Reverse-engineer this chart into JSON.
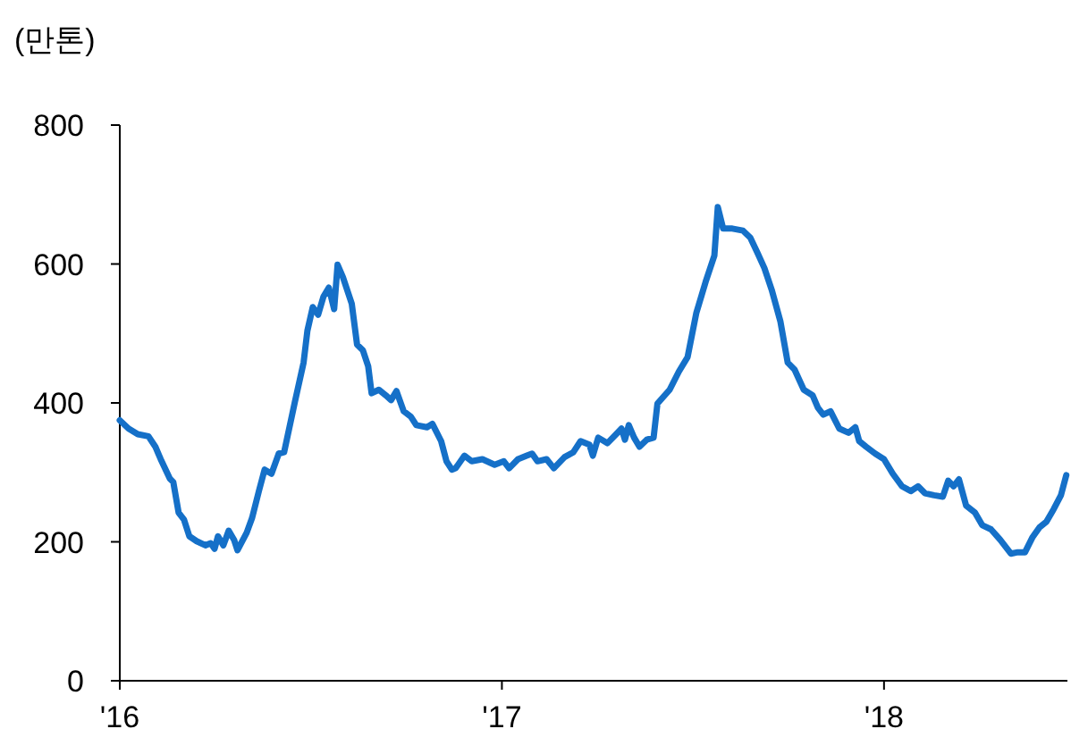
{
  "chart_data": {
    "type": "line",
    "ylabel": "(만톤)",
    "x": [
      2016.0,
      2016.023,
      2016.047,
      2016.075,
      2016.093,
      2016.107,
      2016.131,
      2016.14,
      2016.154,
      2016.168,
      2016.182,
      2016.201,
      2016.224,
      2016.238,
      2016.248,
      2016.257,
      2016.271,
      2016.285,
      2016.299,
      2016.308,
      2016.332,
      2016.346,
      2016.364,
      2016.379,
      2016.397,
      2016.416,
      2016.43,
      2016.458,
      2016.481,
      2016.491,
      2016.505,
      2016.519,
      2016.533,
      2016.547,
      2016.561,
      2016.57,
      2016.584,
      2016.607,
      2016.621,
      2016.636,
      2016.65,
      2016.659,
      2016.678,
      2016.696,
      2016.71,
      2016.724,
      2016.743,
      2016.762,
      2016.776,
      2016.804,
      2016.818,
      2016.841,
      2016.855,
      2016.869,
      2016.879,
      2016.902,
      2016.921,
      2016.949,
      2016.981,
      2017.005,
      2017.019,
      2017.042,
      2017.065,
      2017.079,
      2017.093,
      2017.117,
      2017.136,
      2017.164,
      2017.187,
      2017.206,
      2017.229,
      2017.238,
      2017.252,
      2017.276,
      2017.299,
      2017.313,
      2017.322,
      2017.332,
      2017.346,
      2017.36,
      2017.379,
      2017.397,
      2017.407,
      2017.439,
      2017.463,
      2017.486,
      2017.509,
      2017.533,
      2017.556,
      2017.565,
      2017.579,
      2017.603,
      2017.631,
      2017.65,
      2017.668,
      2017.687,
      2017.706,
      2017.729,
      2017.748,
      2017.766,
      2017.79,
      2017.813,
      2017.827,
      2017.841,
      2017.86,
      2017.883,
      2017.907,
      2017.925,
      2017.935,
      2017.953,
      2017.977,
      2018.0,
      2018.023,
      2018.047,
      2018.07,
      2018.089,
      2018.107,
      2018.131,
      2018.154,
      2018.168,
      2018.182,
      2018.196,
      2018.215,
      2018.238,
      2018.257,
      2018.28,
      2018.304,
      2018.332,
      2018.35,
      2018.369,
      2018.388,
      2018.407,
      2018.425,
      2018.444,
      2018.463,
      2018.477
    ],
    "series": [
      {
        "color": "#1570c8",
        "values": [
          375,
          363,
          355,
          352,
          337,
          319,
          291,
          286,
          242,
          232,
          208,
          201,
          195,
          198,
          190,
          208,
          195,
          216,
          203,
          188,
          213,
          234,
          273,
          304,
          298,
          327,
          329,
          401,
          458,
          504,
          538,
          527,
          553,
          566,
          535,
          599,
          581,
          543,
          484,
          476,
          453,
          414,
          419,
          411,
          404,
          417,
          388,
          380,
          368,
          365,
          370,
          345,
          316,
          304,
          306,
          324,
          316,
          319,
          311,
          316,
          306,
          319,
          324,
          327,
          316,
          319,
          306,
          322,
          329,
          345,
          340,
          324,
          350,
          342,
          355,
          363,
          347,
          368,
          350,
          337,
          347,
          350,
          399,
          419,
          445,
          466,
          530,
          574,
          612,
          682,
          651,
          651,
          648,
          638,
          617,
          594,
          563,
          517,
          458,
          448,
          419,
          411,
          393,
          383,
          388,
          363,
          357,
          365,
          345,
          337,
          327,
          319,
          298,
          280,
          273,
          280,
          270,
          267,
          265,
          288,
          280,
          290,
          252,
          242,
          224,
          218,
          203,
          183,
          185,
          185,
          206,
          221,
          229,
          247,
          267,
          296
        ]
      }
    ],
    "xlim": [
      2016,
      2018.48
    ],
    "xticks": [
      {
        "value": 2016,
        "label": "'16"
      },
      {
        "value": 2017,
        "label": "'17"
      },
      {
        "value": 2018,
        "label": "'18"
      }
    ],
    "ylim": [
      0,
      800
    ],
    "yticks": [
      0,
      200,
      400,
      600,
      800
    ],
    "grid": false,
    "line_style": "solid",
    "marker": "none"
  }
}
